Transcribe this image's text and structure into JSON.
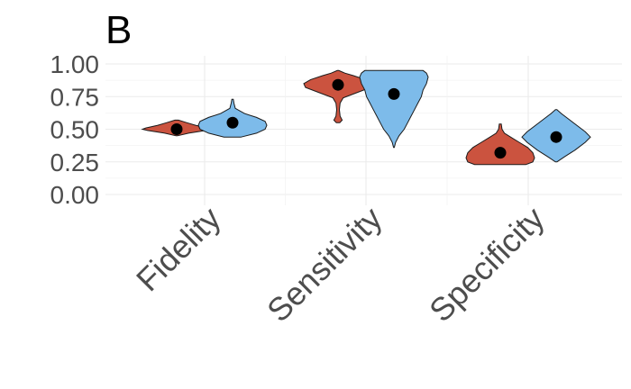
{
  "panel_tag": "B",
  "colors": {
    "group_a": "#CB533F",
    "group_b": "#7DBBEA",
    "grid": "#EBEBEB",
    "tick_text": "#4D4D4D"
  },
  "chart_data": {
    "type": "violin",
    "title": "",
    "xlabel": "",
    "ylabel": "",
    "ylim": [
      0,
      1
    ],
    "yticks": [
      "0.00",
      "0.25",
      "0.50",
      "0.75",
      "1.00"
    ],
    "categories": [
      "Fidelity",
      "Sensitivity",
      "Specificity"
    ],
    "grid": true,
    "legend": "none",
    "series": [
      {
        "color": "#CB533F",
        "distributions": [
          {
            "mean": 0.5,
            "min": 0.45,
            "max": 0.57,
            "profile": [
              [
                0.45,
                0.02
              ],
              [
                0.47,
                0.35
              ],
              [
                0.49,
                0.85
              ],
              [
                0.5,
                1.0
              ],
              [
                0.51,
                0.9
              ],
              [
                0.53,
                0.55
              ],
              [
                0.55,
                0.3
              ],
              [
                0.57,
                0.05
              ]
            ]
          },
          {
            "mean": 0.84,
            "min": 0.55,
            "max": 0.95,
            "profile": [
              [
                0.55,
                0.05
              ],
              [
                0.57,
                0.12
              ],
              [
                0.6,
                0.06
              ],
              [
                0.65,
                0.04
              ],
              [
                0.7,
                0.06
              ],
              [
                0.74,
                0.15
              ],
              [
                0.78,
                0.55
              ],
              [
                0.82,
                0.95
              ],
              [
                0.85,
                1.0
              ],
              [
                0.88,
                0.8
              ],
              [
                0.91,
                0.45
              ],
              [
                0.93,
                0.2
              ],
              [
                0.95,
                0.02
              ]
            ]
          },
          {
            "mean": 0.32,
            "min": 0.23,
            "max": 0.54,
            "profile": [
              [
                0.23,
                0.75
              ],
              [
                0.25,
                0.95
              ],
              [
                0.28,
                1.0
              ],
              [
                0.32,
                0.95
              ],
              [
                0.36,
                0.8
              ],
              [
                0.4,
                0.55
              ],
              [
                0.44,
                0.3
              ],
              [
                0.47,
                0.12
              ],
              [
                0.5,
                0.05
              ],
              [
                0.54,
                0.03
              ]
            ]
          }
        ]
      },
      {
        "color": "#7DBBEA",
        "distributions": [
          {
            "mean": 0.55,
            "min": 0.44,
            "max": 0.73,
            "profile": [
              [
                0.44,
                0.25
              ],
              [
                0.47,
                0.7
              ],
              [
                0.5,
                0.95
              ],
              [
                0.53,
                1.0
              ],
              [
                0.56,
                0.95
              ],
              [
                0.59,
                0.7
              ],
              [
                0.62,
                0.35
              ],
              [
                0.66,
                0.08
              ],
              [
                0.7,
                0.04
              ],
              [
                0.73,
                0.02
              ]
            ]
          },
          {
            "mean": 0.77,
            "min": 0.36,
            "max": 0.95,
            "profile": [
              [
                0.36,
                0.01
              ],
              [
                0.4,
                0.05
              ],
              [
                0.45,
                0.15
              ],
              [
                0.5,
                0.3
              ],
              [
                0.55,
                0.4
              ],
              [
                0.6,
                0.5
              ],
              [
                0.65,
                0.6
              ],
              [
                0.7,
                0.7
              ],
              [
                0.75,
                0.8
              ],
              [
                0.8,
                0.85
              ],
              [
                0.85,
                0.95
              ],
              [
                0.9,
                1.0
              ],
              [
                0.93,
                0.95
              ],
              [
                0.95,
                0.85
              ]
            ]
          },
          {
            "mean": 0.44,
            "min": 0.25,
            "max": 0.65,
            "profile": [
              [
                0.25,
                0.02
              ],
              [
                0.29,
                0.25
              ],
              [
                0.34,
                0.55
              ],
              [
                0.4,
                0.85
              ],
              [
                0.44,
                1.0
              ],
              [
                0.48,
                0.85
              ],
              [
                0.53,
                0.6
              ],
              [
                0.58,
                0.35
              ],
              [
                0.62,
                0.15
              ],
              [
                0.65,
                0.02
              ]
            ]
          }
        ]
      }
    ]
  }
}
